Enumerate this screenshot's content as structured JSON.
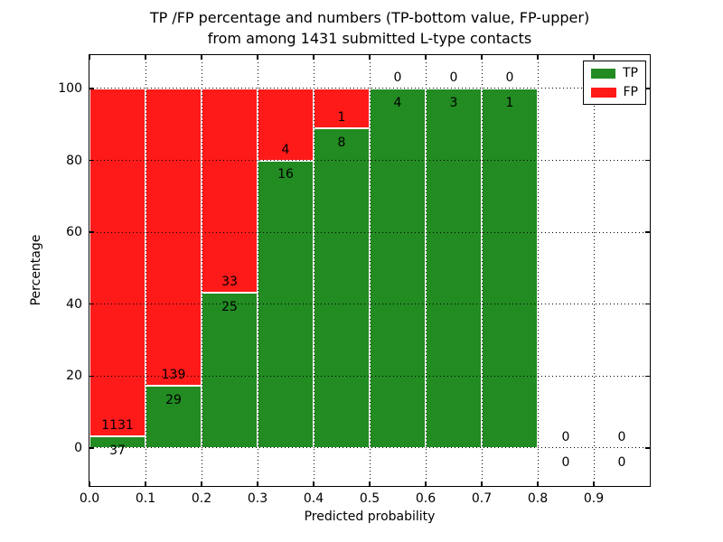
{
  "chart_data": {
    "type": "bar",
    "stacked": true,
    "title": "TP /FP percentage and numbers (TP-bottom value, FP-upper)\nfrom among 1431 submitted L-type contacts",
    "xlabel": "Predicted probability",
    "ylabel": "Percentage",
    "total_contacts": 1431,
    "categories": [
      "0.0-0.1",
      "0.1-0.2",
      "0.2-0.3",
      "0.3-0.4",
      "0.4-0.5",
      "0.5-0.6",
      "0.6-0.7",
      "0.7-0.8",
      "0.8-0.9",
      "0.9-1.0"
    ],
    "bin_centers": [
      0.05,
      0.15,
      0.25,
      0.35,
      0.45,
      0.55,
      0.65,
      0.75,
      0.85,
      0.95
    ],
    "bin_width": 0.1,
    "series": [
      {
        "name": "TP",
        "color": "#228b22",
        "counts": [
          37,
          29,
          25,
          16,
          8,
          4,
          3,
          1,
          0,
          0
        ],
        "pct": [
          3.2,
          17.3,
          43.1,
          80.0,
          88.9,
          100.0,
          100.0,
          100.0,
          0.0,
          0.0
        ]
      },
      {
        "name": "FP",
        "color": "#ff1a1a",
        "counts": [
          1131,
          139,
          33,
          4,
          1,
          0,
          0,
          0,
          0,
          0
        ],
        "pct": [
          96.8,
          82.7,
          56.9,
          20.0,
          11.1,
          0.0,
          0.0,
          0.0,
          0.0,
          0.0
        ]
      }
    ],
    "xtick_values": [
      0.0,
      0.1,
      0.2,
      0.3,
      0.4,
      0.5,
      0.6,
      0.7,
      0.8,
      0.9
    ],
    "xtick_labels": [
      "0.0",
      "0.1",
      "0.2",
      "0.3",
      "0.4",
      "0.5",
      "0.6",
      "0.7",
      "0.8",
      "0.9"
    ],
    "ytick_values": [
      0,
      20,
      40,
      60,
      80,
      100
    ],
    "ytick_labels": [
      "0",
      "20",
      "40",
      "60",
      "80",
      "100"
    ],
    "xlim": [
      0.0,
      1.0
    ],
    "ylim": [
      -10.6,
      109.3
    ],
    "grid": true,
    "grid_style": "dotted",
    "legend_position": "upper right",
    "annotation_note": "FP count drawn above green bar top, TP count drawn below green bar top"
  }
}
